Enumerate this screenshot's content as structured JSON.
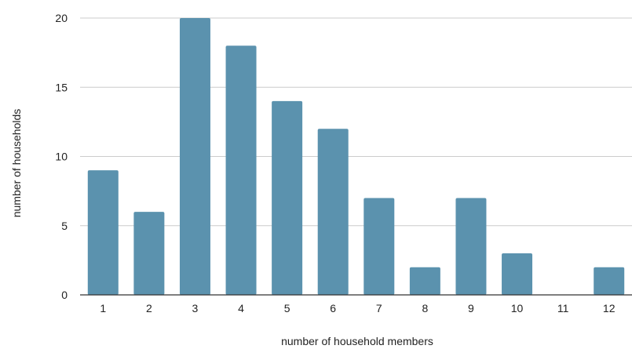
{
  "chart_data": {
    "type": "bar",
    "categories": [
      "1",
      "2",
      "3",
      "4",
      "5",
      "6",
      "7",
      "8",
      "9",
      "10",
      "11",
      "12"
    ],
    "values": [
      9,
      6,
      20,
      18,
      14,
      12,
      7,
      2,
      7,
      3,
      0,
      2
    ],
    "xlabel": "number of household members",
    "ylabel": "number of households",
    "ylim": [
      0,
      20
    ],
    "yticks": [
      0,
      5,
      10,
      15,
      20
    ],
    "grid": true,
    "colors": {
      "bar": "#5b92ae",
      "grid": "#cccccc",
      "baseline": "#333333"
    }
  }
}
